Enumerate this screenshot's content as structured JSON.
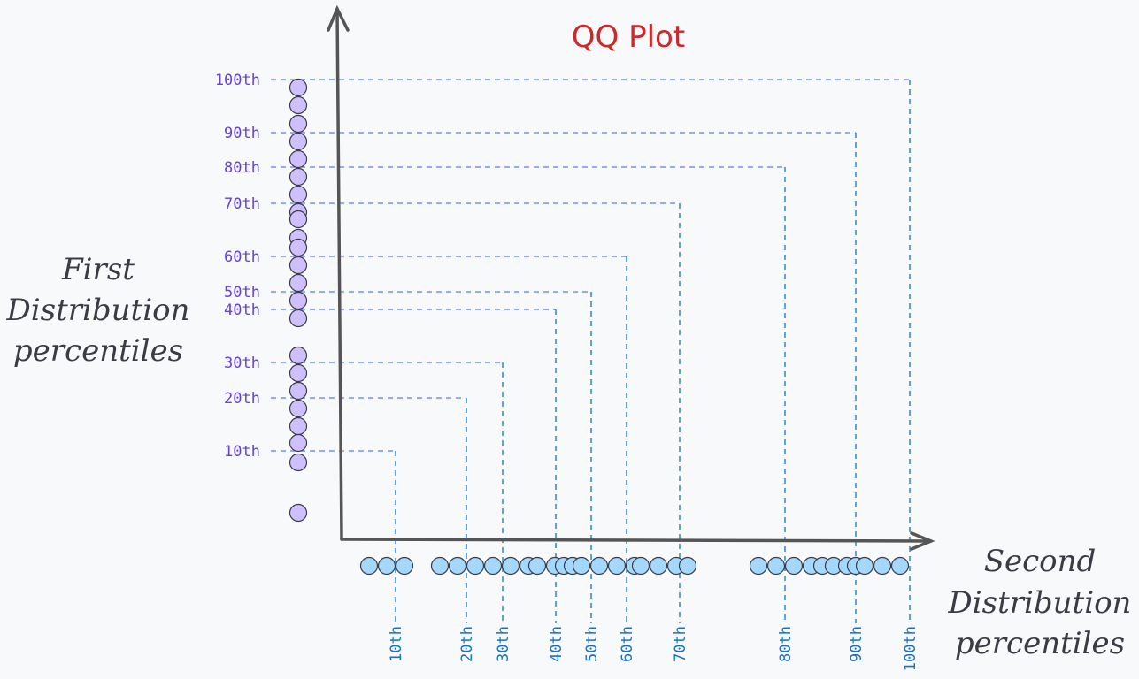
{
  "title": "QQ Plot",
  "y_axis_title": [
    "First",
    "Distribution",
    "percentiles"
  ],
  "x_axis_title": [
    "Second",
    "Distribution",
    "percentiles"
  ],
  "colors": {
    "title": "#c92a2a",
    "first_distribution": "#d0bfff",
    "second_distribution": "#a5d8ff",
    "first_labels": "#6741d9",
    "second_labels": "#1971c2",
    "axis": "#555555"
  },
  "percentile_pairs": [
    {
      "first_label": "10th",
      "second_label": "10th"
    },
    {
      "first_label": "20th",
      "second_label": "20th"
    },
    {
      "first_label": "30th",
      "second_label": "30th"
    },
    {
      "first_label": "40th",
      "second_label": "40th"
    },
    {
      "first_label": "50th",
      "second_label": "50th"
    },
    {
      "first_label": "60th",
      "second_label": "60th"
    },
    {
      "first_label": "70th",
      "second_label": "70th"
    },
    {
      "first_label": "80th",
      "second_label": "80th"
    },
    {
      "first_label": "90th",
      "second_label": "90th"
    },
    {
      "first_label": "100th",
      "second_label": "100th"
    }
  ]
}
